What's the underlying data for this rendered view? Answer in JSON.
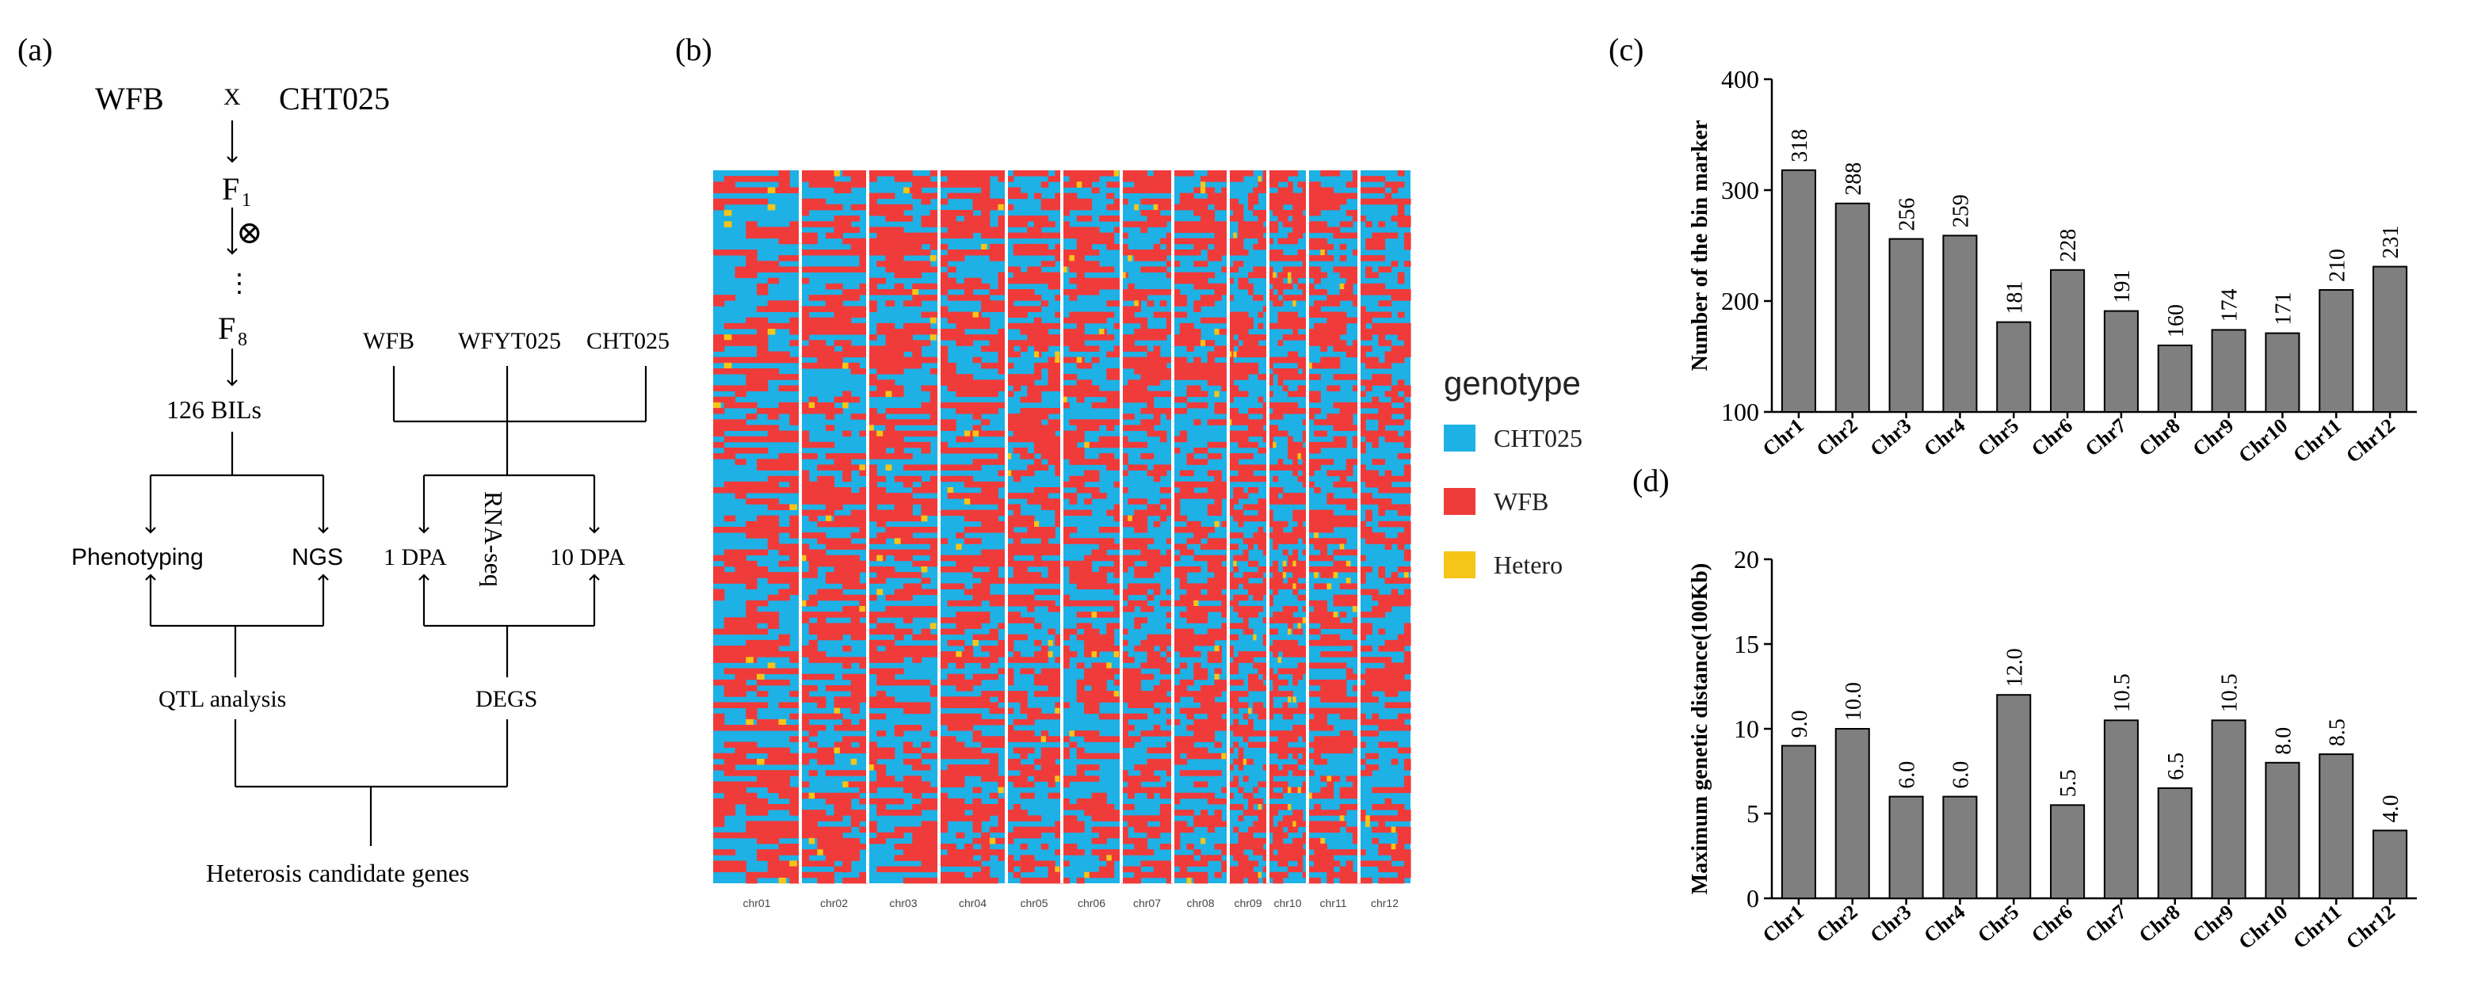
{
  "panel_labels": {
    "a": "(a)",
    "b": "(b)",
    "c": "(c)",
    "d": "(d)"
  },
  "flowchart": {
    "parent1": "WFB",
    "cross": "X",
    "parent2": "CHT025",
    "f1": "F",
    "f1_sub": "1",
    "self": "⊗",
    "dots": "⋮",
    "f8": "F",
    "f8_sub": "8",
    "bils": "126 BILs",
    "phenotyping": "Phenotyping",
    "ngs": "NGS",
    "qtl": "QTL analysis",
    "rna_parent1": "WFB",
    "rna_hybrid": "WFYT025",
    "rna_parent2": "CHT025",
    "rnaseq": "RNA-seq",
    "dpa1": "1 DPA",
    "dpa10": "10 DPA",
    "degs": "DEGS",
    "candidates": "Heterosis candidate genes"
  },
  "heatmap": {
    "chromosomes": [
      "chr01",
      "chr02",
      "chr03",
      "chr04",
      "chr05",
      "chr06",
      "chr07",
      "chr08",
      "chr09",
      "chr10",
      "chr11",
      "chr12"
    ],
    "legend_title": "genotype",
    "legend": [
      {
        "label": "CHT025",
        "color": "#1eb1e5"
      },
      {
        "label": "WFB",
        "color": "#f03b3b"
      },
      {
        "label": "Hetero",
        "color": "#f5c518"
      }
    ]
  },
  "chart_data": [
    {
      "type": "bar",
      "panel": "c",
      "title": "",
      "xlabel": "",
      "ylabel": "Number of the bin marker",
      "categories": [
        "Chr1",
        "Chr2",
        "Chr3",
        "Chr4",
        "Chr5",
        "Chr6",
        "Chr7",
        "Chr8",
        "Chr9",
        "Chr10",
        "Chr11",
        "Chr12"
      ],
      "values": [
        318,
        288,
        256,
        259,
        181,
        228,
        191,
        160,
        174,
        171,
        210,
        231
      ],
      "labels": [
        "318",
        "288",
        "256",
        "259",
        "181",
        "228",
        "191",
        "160",
        "174",
        "171",
        "210",
        "231"
      ],
      "ylim": [
        100,
        400
      ],
      "yticks": [
        "100",
        "200",
        "300",
        "400"
      ],
      "bar_color": "#7f7f7f"
    },
    {
      "type": "bar",
      "panel": "d",
      "title": "",
      "xlabel": "",
      "ylabel": "Maximum genetic distance(100Kb)",
      "categories": [
        "Chr1",
        "Chr2",
        "Chr3",
        "Chr4",
        "Chr5",
        "Chr6",
        "Chr7",
        "Chr8",
        "Chr9",
        "Chr10",
        "Chr11",
        "Chr12"
      ],
      "values": [
        9.0,
        10.0,
        6.0,
        6.0,
        12.0,
        5.5,
        10.5,
        6.5,
        10.5,
        8.0,
        8.5,
        4.0
      ],
      "labels": [
        "9.0",
        "10.0",
        "6.0",
        "6.0",
        "12.0",
        "5.5",
        "10.5",
        "6.5",
        "10.5",
        "8.0",
        "8.5",
        "4.0"
      ],
      "ylim": [
        0,
        20
      ],
      "yticks": [
        "0",
        "5",
        "10",
        "15",
        "20"
      ],
      "bar_color": "#7f7f7f"
    }
  ]
}
